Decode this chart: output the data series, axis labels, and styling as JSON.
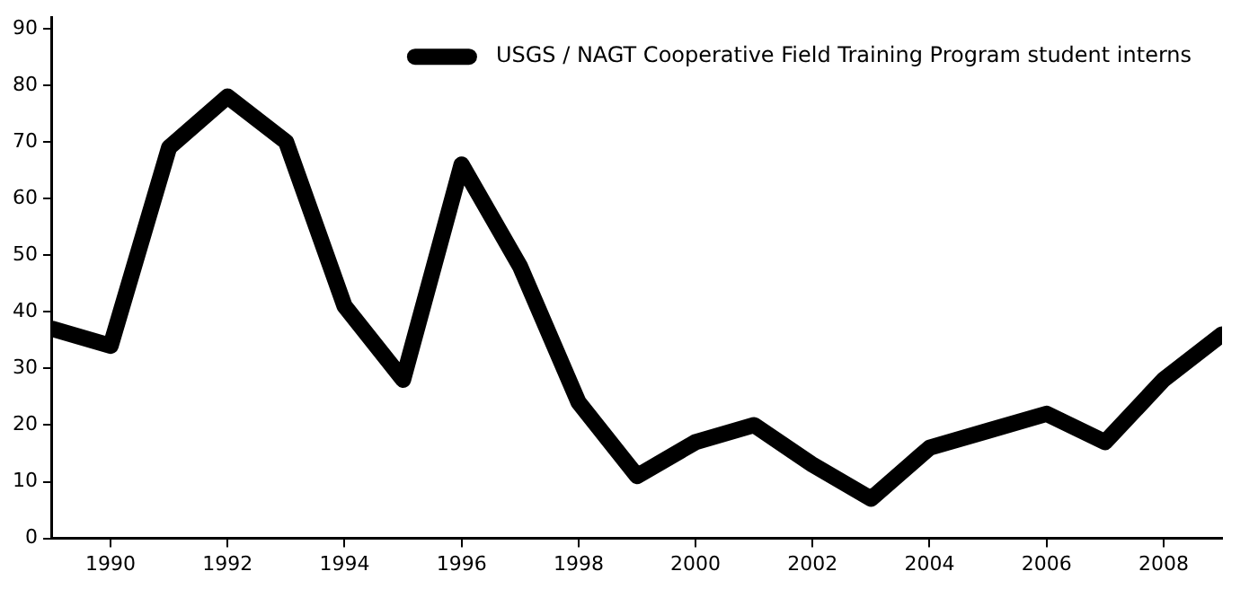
{
  "chart_data": {
    "type": "line",
    "x": [
      1989,
      1990,
      1991,
      1992,
      1993,
      1994,
      1995,
      1996,
      1997,
      1998,
      1999,
      2000,
      2001,
      2002,
      2003,
      2004,
      2005,
      2006,
      2007,
      2008,
      2009
    ],
    "series": [
      {
        "name": "USGS / NAGT Cooperative Field Training Program student interns",
        "color": "#000000",
        "values": [
          37,
          34,
          69,
          78,
          70,
          41,
          28,
          66,
          48,
          24,
          11,
          17,
          20,
          13,
          7,
          16,
          19,
          22,
          17,
          28,
          36
        ]
      }
    ],
    "xlim": [
      1989,
      2009
    ],
    "xticks": [
      1990,
      1992,
      1994,
      1996,
      1998,
      2000,
      2002,
      2004,
      2006,
      2008
    ],
    "ylim": [
      0,
      92
    ],
    "yticks": [
      0,
      10,
      20,
      30,
      40,
      50,
      60,
      70,
      80,
      90
    ],
    "grid": false,
    "legend": "top",
    "marker": "none",
    "line_style": "solid"
  }
}
